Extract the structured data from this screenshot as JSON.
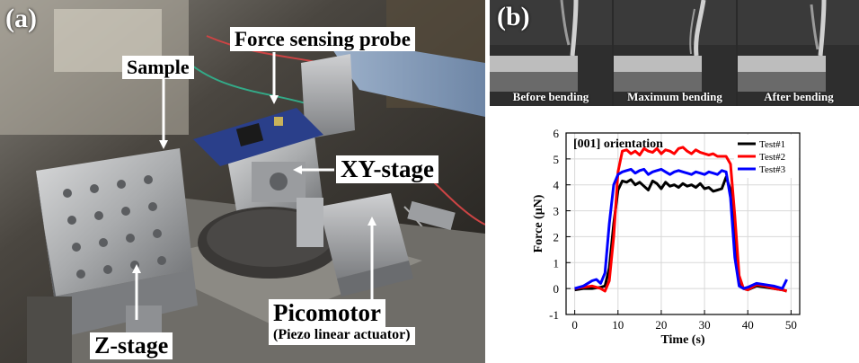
{
  "figure": {
    "panel_a": {
      "letter": "(a)",
      "labels": {
        "sample": "Sample",
        "force_probe": "Force sensing probe",
        "xy_stage": "XY-stage",
        "z_stage": "Z-stage",
        "picomotor": "Picomotor",
        "picomotor_sub": "(Piezo linear actuator)"
      }
    },
    "panel_b": {
      "letter": "(b)",
      "sem_captions": [
        "Before bending",
        "Maximum bending",
        "After bending"
      ]
    }
  },
  "chart_data": {
    "type": "line",
    "annotation": "[001] orientation",
    "xlabel": "Time (s)",
    "ylabel": "Force (μN)",
    "xlim": [
      -2,
      52
    ],
    "ylim": [
      -1,
      6
    ],
    "xticks": [
      0,
      10,
      20,
      30,
      40,
      50
    ],
    "yticks": [
      -1,
      0,
      1,
      2,
      3,
      4,
      5,
      6
    ],
    "grid": true,
    "legend_position": "top-right",
    "series": [
      {
        "name": "Test#1",
        "color": "#000000",
        "x": [
          0,
          2,
          4,
          6,
          7,
          8,
          9,
          10,
          11,
          12,
          13,
          14,
          15,
          16,
          17,
          18,
          19,
          20,
          21,
          22,
          23,
          24,
          25,
          26,
          27,
          28,
          29,
          30,
          31,
          32,
          33,
          34,
          35,
          36,
          37,
          38,
          39,
          40,
          42,
          44,
          46,
          48,
          49
        ],
        "y": [
          -0.05,
          0.0,
          0.0,
          0.05,
          0.1,
          0.8,
          2.5,
          3.8,
          4.15,
          4.1,
          4.2,
          4.0,
          4.1,
          3.95,
          3.8,
          4.15,
          4.05,
          3.85,
          4.1,
          3.95,
          4.0,
          3.9,
          4.05,
          3.95,
          4.0,
          3.9,
          4.05,
          3.85,
          3.9,
          3.75,
          3.8,
          3.85,
          4.3,
          3.8,
          2.0,
          0.3,
          0.0,
          -0.05,
          0.1,
          0.05,
          0.0,
          -0.05,
          -0.1
        ]
      },
      {
        "name": "Test#2",
        "color": "#ff0000",
        "x": [
          0,
          2,
          4,
          6,
          7,
          8,
          9,
          10,
          11,
          12,
          13,
          14,
          15,
          16,
          17,
          18,
          19,
          20,
          21,
          22,
          23,
          24,
          25,
          26,
          27,
          28,
          29,
          30,
          31,
          32,
          33,
          34,
          35,
          36,
          37,
          38,
          39,
          40,
          42,
          44,
          46,
          48,
          49
        ],
        "y": [
          0.0,
          0.05,
          0.1,
          0.0,
          -0.1,
          0.3,
          2.0,
          4.5,
          5.3,
          5.35,
          5.2,
          5.3,
          5.15,
          5.4,
          5.3,
          5.25,
          5.4,
          5.2,
          5.35,
          5.3,
          5.2,
          5.4,
          5.45,
          5.3,
          5.2,
          5.35,
          5.25,
          5.2,
          5.15,
          5.2,
          5.1,
          5.1,
          5.1,
          4.8,
          2.8,
          0.5,
          0.0,
          -0.05,
          0.15,
          0.1,
          0.0,
          -0.05,
          -0.1
        ]
      },
      {
        "name": "Test#3",
        "color": "#0000ff",
        "x": [
          0,
          2,
          4,
          5,
          6,
          7,
          8,
          9,
          10,
          11,
          12,
          13,
          14,
          15,
          16,
          17,
          18,
          19,
          20,
          21,
          22,
          23,
          24,
          25,
          26,
          27,
          28,
          29,
          30,
          31,
          32,
          33,
          34,
          35,
          36,
          37,
          38,
          39,
          40,
          42,
          44,
          46,
          48,
          49
        ],
        "y": [
          0.0,
          0.1,
          0.3,
          0.35,
          0.2,
          0.6,
          2.5,
          4.0,
          4.4,
          4.5,
          4.55,
          4.6,
          4.45,
          4.55,
          4.6,
          4.4,
          4.5,
          4.55,
          4.6,
          4.5,
          4.4,
          4.5,
          4.55,
          4.5,
          4.45,
          4.4,
          4.5,
          4.45,
          4.4,
          4.5,
          4.45,
          4.4,
          4.55,
          4.5,
          3.5,
          1.2,
          0.1,
          0.0,
          0.05,
          0.2,
          0.15,
          0.1,
          0.0,
          0.35
        ]
      }
    ]
  }
}
